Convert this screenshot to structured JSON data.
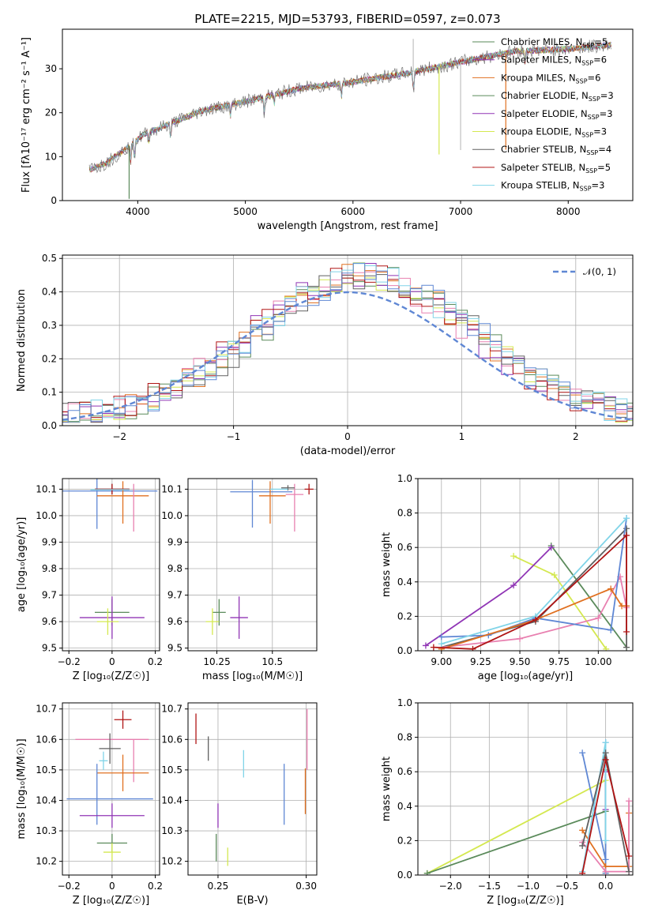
{
  "colors": {
    "blue": "#5f87d4",
    "orange": "#e07020",
    "green": "#5a8a5a",
    "purple": "#9035b5",
    "lime": "#d4e850",
    "gray": "#606060",
    "red": "#b01515",
    "cyan": "#80d4e8",
    "pink": "#e880b0",
    "fit": "#5f87d4"
  },
  "chart_data": [
    {
      "id": "spectrum",
      "type": "line",
      "title": "PLATE=2215, MJD=53793, FIBERID=0597, z=0.073",
      "xlabel": "wavelength [Angstrom, rest frame]",
      "ylabel": "Flux [fλ10⁻¹⁷ erg cm⁻² s⁻¹ A⁻¹]",
      "xlim": [
        3300,
        8600
      ],
      "ylim": [
        0,
        39
      ],
      "xticks": [
        4000,
        5000,
        6000,
        7000,
        8000
      ],
      "yticks": [
        0,
        10,
        20,
        30
      ],
      "grid": false,
      "legend_position": "top-right",
      "continuum": [
        [
          3550,
          7.0
        ],
        [
          3700,
          8.5
        ],
        [
          3900,
          12.0
        ],
        [
          4050,
          15.0
        ],
        [
          4300,
          17.5
        ],
        [
          4600,
          20.5
        ],
        [
          5000,
          22.5
        ],
        [
          5500,
          25.5
        ],
        [
          6000,
          27.0
        ],
        [
          6500,
          29.0
        ],
        [
          7000,
          31.5
        ],
        [
          7500,
          34.0
        ],
        [
          8000,
          34.5
        ],
        [
          8400,
          35.5
        ]
      ],
      "absorption_lines": [
        [
          3934,
          4.0
        ],
        [
          3969,
          3.5
        ],
        [
          4102,
          2.0
        ],
        [
          4305,
          3.0
        ],
        [
          4861,
          2.5
        ],
        [
          5175,
          3.5
        ],
        [
          5270,
          2.0
        ],
        [
          5893,
          3.0
        ],
        [
          6563,
          4.0
        ],
        [
          7600,
          2.5
        ]
      ],
      "spikes": [
        [
          3920,
          -12
        ],
        [
          6560,
          7.5
        ],
        [
          6800,
          -20
        ],
        [
          7000,
          -20
        ],
        [
          7420,
          -22
        ]
      ],
      "series": [
        {
          "name": "Chabrier MILES, N",
          "sub": "SSP",
          "count": "=5",
          "color": "#5a8a5a"
        },
        {
          "name": "Salpeter MILES, N",
          "sub": "SSP",
          "count": "=6",
          "color": "#9035b5"
        },
        {
          "name": "Kroupa MILES, N",
          "sub": "SSP",
          "count": "=6",
          "color": "#e07020"
        },
        {
          "name": "Chabrier ELODIE, N",
          "sub": "SSP",
          "count": "=3",
          "color": "#5a8a5a"
        },
        {
          "name": "Salpeter ELODIE, N",
          "sub": "SSP",
          "count": "=3",
          "color": "#9035b5"
        },
        {
          "name": "Kroupa ELODIE, N",
          "sub": "SSP",
          "count": "=3",
          "color": "#d4e850"
        },
        {
          "name": "Chabrier STELIB, N",
          "sub": "SSP",
          "count": "=4",
          "color": "#606060"
        },
        {
          "name": "Salpeter STELIB, N",
          "sub": "SSP",
          "count": "=5",
          "color": "#b01515"
        },
        {
          "name": "Kroupa STELIB, N",
          "sub": "SSP",
          "count": "=3",
          "color": "#80d4e8"
        }
      ]
    },
    {
      "id": "residuals",
      "type": "line",
      "xlabel": "(data-model)/error",
      "ylabel": "Normed distribution",
      "xlim": [
        -2.5,
        2.5
      ],
      "ylim": [
        0,
        0.51
      ],
      "xticks": [
        -2,
        -1,
        0,
        1,
        2
      ],
      "yticks": [
        0.0,
        0.1,
        0.2,
        0.3,
        0.4,
        0.5
      ],
      "grid": true,
      "legend_position": "top-right",
      "gauss_label": "𝒩(0, 1)",
      "bin_width": 0.1,
      "histogram_colors": [
        "#e880b0",
        "#e07020",
        "#5a8a5a",
        "#9035b5",
        "#d4e850",
        "#606060",
        "#b01515",
        "#80d4e8",
        "#5f87d4"
      ]
    },
    {
      "id": "age-vs-Z",
      "type": "scatter",
      "xlabel": "Z [log₁₀(Z/Z☉)]",
      "ylabel": "age  [log₁₀(age/yr)]",
      "xlim": [
        -0.23,
        0.22
      ],
      "ylim": [
        9.49,
        10.14
      ],
      "xticks": [
        -0.2,
        0.0,
        0.2
      ],
      "yticks": [
        9.5,
        9.6,
        9.7,
        9.8,
        9.9,
        10.0,
        10.1
      ],
      "grid": true,
      "points": [
        {
          "x": -0.01,
          "xerr": 0.22,
          "y": 10.093,
          "yerr": 0.0,
          "c": "blue"
        },
        {
          "x": -0.07,
          "xerr": 0.0,
          "y": 10.045,
          "yerr": 0.095,
          "c": "blue"
        },
        {
          "x": 0.05,
          "xerr": 0.12,
          "y": 10.075,
          "yerr": 0.0,
          "c": "orange"
        },
        {
          "x": 0.05,
          "xerr": 0.0,
          "y": 10.05,
          "yerr": 0.08,
          "c": "orange"
        },
        {
          "x": 0.1,
          "xerr": 0.0,
          "y": 10.03,
          "yerr": 0.09,
          "c": "pink"
        },
        {
          "x": 0.0,
          "xerr": 0.08,
          "y": 10.1,
          "yerr": 0.02,
          "c": "gray"
        },
        {
          "x": 0.0,
          "xerr": 0.08,
          "y": 10.1,
          "yerr": 0.02,
          "c": "red"
        },
        {
          "x": -0.01,
          "xerr": 0.09,
          "y": 10.098,
          "yerr": 0.0,
          "c": "cyan"
        },
        {
          "x": 0.0,
          "xerr": 0.08,
          "y": 9.635,
          "yerr": 0.05,
          "c": "green"
        },
        {
          "x": 0.0,
          "xerr": 0.15,
          "y": 9.615,
          "yerr": 0.08,
          "c": "purple"
        },
        {
          "x": -0.02,
          "xerr": 0.05,
          "y": 9.6,
          "yerr": 0.05,
          "c": "lime"
        }
      ]
    },
    {
      "id": "age-vs-mass",
      "type": "scatter",
      "xlabel": "mass [log₁₀(M/M☉)]",
      "ylabel": "",
      "xlim": [
        10.12,
        10.7
      ],
      "ylim": [
        9.49,
        10.14
      ],
      "xticks": [
        10.25,
        10.5
      ],
      "yticks": [
        9.5,
        9.6,
        9.7,
        9.8,
        9.9,
        10.0,
        10.1
      ],
      "grid": true,
      "points": [
        {
          "x": 10.45,
          "xerr": 0.14,
          "y": 10.09,
          "yerr": 0.0,
          "c": "blue"
        },
        {
          "x": 10.41,
          "xerr": 0.0,
          "y": 10.045,
          "yerr": 0.09,
          "c": "blue"
        },
        {
          "x": 10.5,
          "xerr": 0.06,
          "y": 10.075,
          "yerr": 0.0,
          "c": "orange"
        },
        {
          "x": 10.49,
          "xerr": 0.0,
          "y": 10.05,
          "yerr": 0.08,
          "c": "orange"
        },
        {
          "x": 10.6,
          "xerr": 0.04,
          "y": 10.08,
          "yerr": 0.0,
          "c": "pink"
        },
        {
          "x": 10.6,
          "xerr": 0.0,
          "y": 10.03,
          "yerr": 0.09,
          "c": "pink"
        },
        {
          "x": 10.57,
          "xerr": 0.03,
          "y": 10.105,
          "yerr": 0.01,
          "c": "gray"
        },
        {
          "x": 10.665,
          "xerr": 0.02,
          "y": 10.1,
          "yerr": 0.02,
          "c": "red"
        },
        {
          "x": 10.53,
          "xerr": 0.04,
          "y": 10.1,
          "yerr": 0.0,
          "c": "cyan"
        },
        {
          "x": 10.26,
          "xerr": 0.03,
          "y": 9.635,
          "yerr": 0.05,
          "c": "green"
        },
        {
          "x": 10.35,
          "xerr": 0.04,
          "y": 9.615,
          "yerr": 0.08,
          "c": "purple"
        },
        {
          "x": 10.23,
          "xerr": 0.03,
          "y": 9.6,
          "yerr": 0.05,
          "c": "lime"
        }
      ]
    },
    {
      "id": "weights-vs-age",
      "type": "line",
      "xlabel": "age  [log₁₀(age/yr)]",
      "ylabel": "mass weight",
      "xlim": [
        8.85,
        10.22
      ],
      "ylim": [
        0,
        1.0
      ],
      "xticks": [
        9.0,
        9.25,
        9.5,
        9.75,
        10.0
      ],
      "xticklabels": [
        "9.00",
        "9.25",
        "9.50",
        "9.75",
        "10.00"
      ],
      "yticks": [
        0.0,
        0.2,
        0.4,
        0.6,
        0.8,
        1.0
      ],
      "grid": true,
      "series": [
        {
          "c": "green",
          "pts": [
            [
              9.7,
              0.61
            ],
            [
              10.18,
              0.02
            ]
          ]
        },
        {
          "c": "lime",
          "pts": [
            [
              9.46,
              0.55
            ],
            [
              9.72,
              0.44
            ],
            [
              10.05,
              0.01
            ]
          ]
        },
        {
          "c": "purple",
          "pts": [
            [
              8.9,
              0.03
            ],
            [
              9.46,
              0.38
            ],
            [
              9.7,
              0.6
            ]
          ]
        },
        {
          "c": "gray",
          "pts": [
            [
              9.0,
              0.02
            ],
            [
              9.6,
              0.17
            ],
            [
              10.18,
              0.71
            ],
            [
              10.18,
              0.02
            ]
          ]
        },
        {
          "c": "pink",
          "pts": [
            [
              9.0,
              0.02
            ],
            [
              9.5,
              0.07
            ],
            [
              10.0,
              0.19
            ],
            [
              10.14,
              0.43
            ],
            [
              10.18,
              0.25
            ]
          ]
        },
        {
          "c": "blue",
          "pts": [
            [
              9.0,
              0.08
            ],
            [
              9.3,
              0.09
            ],
            [
              9.6,
              0.19
            ],
            [
              10.08,
              0.12
            ],
            [
              10.18,
              0.77
            ]
          ]
        },
        {
          "c": "orange",
          "pts": [
            [
              9.0,
              0.01
            ],
            [
              9.6,
              0.18
            ],
            [
              10.08,
              0.36
            ],
            [
              10.15,
              0.26
            ],
            [
              10.18,
              0.26
            ]
          ]
        },
        {
          "c": "cyan",
          "pts": [
            [
              9.0,
              0.04
            ],
            [
              9.6,
              0.2
            ],
            [
              10.18,
              0.77
            ]
          ]
        },
        {
          "c": "red",
          "pts": [
            [
              8.95,
              0.02
            ],
            [
              9.2,
              0.01
            ],
            [
              9.6,
              0.18
            ],
            [
              10.18,
              0.67
            ],
            [
              10.18,
              0.11
            ]
          ]
        }
      ]
    },
    {
      "id": "mass-vs-Z",
      "type": "scatter",
      "xlabel": "Z [log₁₀(Z/Z☉)]",
      "ylabel": "mass [log₁₀(M/M☉)]",
      "xlim": [
        -0.23,
        0.22
      ],
      "ylim": [
        10.155,
        10.72
      ],
      "xticks": [
        -0.2,
        0.0,
        0.2
      ],
      "yticks": [
        10.2,
        10.3,
        10.4,
        10.5,
        10.6,
        10.7
      ],
      "grid": true,
      "points": [
        {
          "x": 0.05,
          "xerr": 0.04,
          "y": 10.665,
          "yerr": 0.03,
          "c": "red"
        },
        {
          "x": 0.0,
          "xerr": 0.17,
          "y": 10.6,
          "yerr": 0.0,
          "c": "pink"
        },
        {
          "x": 0.1,
          "xerr": 0.0,
          "y": 10.53,
          "yerr": 0.07,
          "c": "pink"
        },
        {
          "x": -0.01,
          "xerr": 0.05,
          "y": 10.57,
          "yerr": 0.05,
          "c": "gray"
        },
        {
          "x": -0.04,
          "xerr": 0.02,
          "y": 10.53,
          "yerr": 0.03,
          "c": "cyan"
        },
        {
          "x": 0.05,
          "xerr": 0.12,
          "y": 10.49,
          "yerr": 0.06,
          "c": "orange"
        },
        {
          "x": -0.01,
          "xerr": 0.2,
          "y": 10.405,
          "yerr": 0.0,
          "c": "blue"
        },
        {
          "x": -0.07,
          "xerr": 0.0,
          "y": 10.42,
          "yerr": 0.1,
          "c": "blue"
        },
        {
          "x": 0.0,
          "xerr": 0.15,
          "y": 10.35,
          "yerr": 0.04,
          "c": "purple"
        },
        {
          "x": 0.0,
          "xerr": 0.07,
          "y": 10.26,
          "yerr": 0.03,
          "c": "green"
        },
        {
          "x": 0.0,
          "xerr": 0.04,
          "y": 10.23,
          "yerr": 0.03,
          "c": "lime"
        }
      ]
    },
    {
      "id": "mass-vs-ebv",
      "type": "scatter",
      "xlabel": "E(B-V)",
      "ylabel": "",
      "xlim": [
        0.233,
        0.306
      ],
      "ylim": [
        10.155,
        10.72
      ],
      "xticks": [
        0.25,
        0.3
      ],
      "xticklabels": [
        "0.25",
        "0.30"
      ],
      "yticks": [
        10.2,
        10.3,
        10.4,
        10.5,
        10.6,
        10.7
      ],
      "grid": true,
      "points": [
        {
          "x": 0.2375,
          "y": 10.635,
          "yerr": 0.05,
          "c": "red"
        },
        {
          "x": 0.2445,
          "y": 10.57,
          "yerr": 0.04,
          "c": "gray"
        },
        {
          "x": 0.2645,
          "y": 10.52,
          "yerr": 0.045,
          "c": "cyan"
        },
        {
          "x": 0.2875,
          "y": 10.42,
          "yerr": 0.1,
          "c": "blue"
        },
        {
          "x": 0.2995,
          "y": 10.43,
          "yerr": 0.075,
          "c": "orange"
        },
        {
          "x": 0.3005,
          "y": 10.6,
          "yerr": 0.1,
          "c": "pink"
        },
        {
          "x": 0.25,
          "y": 10.35,
          "yerr": 0.04,
          "c": "purple"
        },
        {
          "x": 0.249,
          "y": 10.245,
          "yerr": 0.045,
          "c": "green"
        },
        {
          "x": 0.2555,
          "y": 10.215,
          "yerr": 0.03,
          "c": "lime"
        }
      ]
    },
    {
      "id": "weights-vs-Z",
      "type": "line",
      "xlabel": "Z [log₁₀(Z/Z☉)]",
      "ylabel": "mass weight",
      "xlim": [
        -2.42,
        0.35
      ],
      "ylim": [
        0,
        1.0
      ],
      "xticks": [
        -2.0,
        -1.5,
        -1.0,
        -0.5,
        0.0
      ],
      "xticklabels": [
        "−2.0",
        "−1.5",
        "−1.0",
        "−0.5",
        "0.0"
      ],
      "yticks": [
        0.0,
        0.2,
        0.4,
        0.6,
        0.8,
        1.0
      ],
      "grid": true,
      "series": [
        {
          "c": "lime",
          "pts": [
            [
              -2.3,
              0.01
            ],
            [
              0.0,
              0.55
            ],
            [
              0.0,
              0.01
            ]
          ]
        },
        {
          "c": "green",
          "pts": [
            [
              -2.3,
              0.01
            ],
            [
              0.0,
              0.37
            ],
            [
              0.0,
              0.61
            ]
          ]
        },
        {
          "c": "purple",
          "pts": [
            [
              0.0,
              0.6
            ],
            [
              0.0,
              0.38
            ]
          ]
        },
        {
          "c": "blue",
          "pts": [
            [
              -0.3,
              0.71
            ],
            [
              0.0,
              0.09
            ],
            [
              0.0,
              0.77
            ],
            [
              0.0,
              0.01
            ]
          ]
        },
        {
          "c": "orange",
          "pts": [
            [
              -0.3,
              0.26
            ],
            [
              0.0,
              0.05
            ],
            [
              0.3,
              0.05
            ],
            [
              0.3,
              0.36
            ]
          ]
        },
        {
          "c": "pink",
          "pts": [
            [
              -0.3,
              0.19
            ],
            [
              0.0,
              0.02
            ],
            [
              0.3,
              0.02
            ],
            [
              0.3,
              0.43
            ]
          ]
        },
        {
          "c": "cyan",
          "pts": [
            [
              -0.3,
              0.02
            ],
            [
              0.0,
              0.77
            ],
            [
              0.0,
              0.2
            ]
          ]
        },
        {
          "c": "gray",
          "pts": [
            [
              -0.3,
              0.17
            ],
            [
              0.0,
              0.71
            ],
            [
              0.3,
              0.02
            ]
          ]
        },
        {
          "c": "red",
          "pts": [
            [
              -0.3,
              0.01
            ],
            [
              0.0,
              0.67
            ],
            [
              0.3,
              0.11
            ]
          ]
        }
      ]
    }
  ]
}
